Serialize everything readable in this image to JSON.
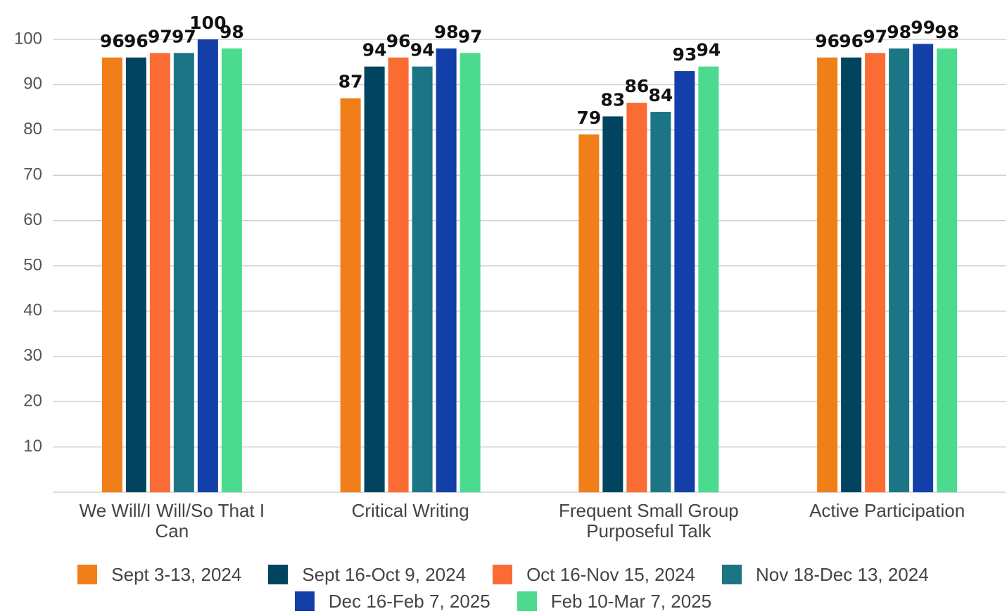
{
  "chart_data": {
    "type": "bar",
    "categories": [
      "We Will/I Will/So That I Can",
      "Critical Writing",
      "Frequent Small Group Purposeful Talk",
      "Active Participation"
    ],
    "series": [
      {
        "name": "Sept 3-13, 2024",
        "color": "#f07f19",
        "values": [
          96,
          87,
          79,
          96
        ]
      },
      {
        "name": "Sept 16-Oct 9, 2024",
        "color": "#004460",
        "values": [
          96,
          94,
          83,
          96
        ]
      },
      {
        "name": "Oct 16-Nov 15, 2024",
        "color": "#fb6b34",
        "values": [
          97,
          96,
          86,
          97
        ]
      },
      {
        "name": "Nov 18-Dec 13, 2024",
        "color": "#1b7585",
        "values": [
          97,
          94,
          84,
          98
        ]
      },
      {
        "name": "Dec 16-Feb 7, 2025",
        "color": "#1340a8",
        "values": [
          100,
          98,
          93,
          99
        ]
      },
      {
        "name": "Feb 10-Mar 7, 2025",
        "color": "#4cdb8e",
        "values": [
          98,
          97,
          94,
          98
        ]
      }
    ],
    "ylim": [
      0,
      100
    ],
    "yticks": [
      10,
      20,
      30,
      40,
      50,
      60,
      70,
      80,
      90,
      100
    ],
    "grid": true,
    "legend": "bottom"
  }
}
